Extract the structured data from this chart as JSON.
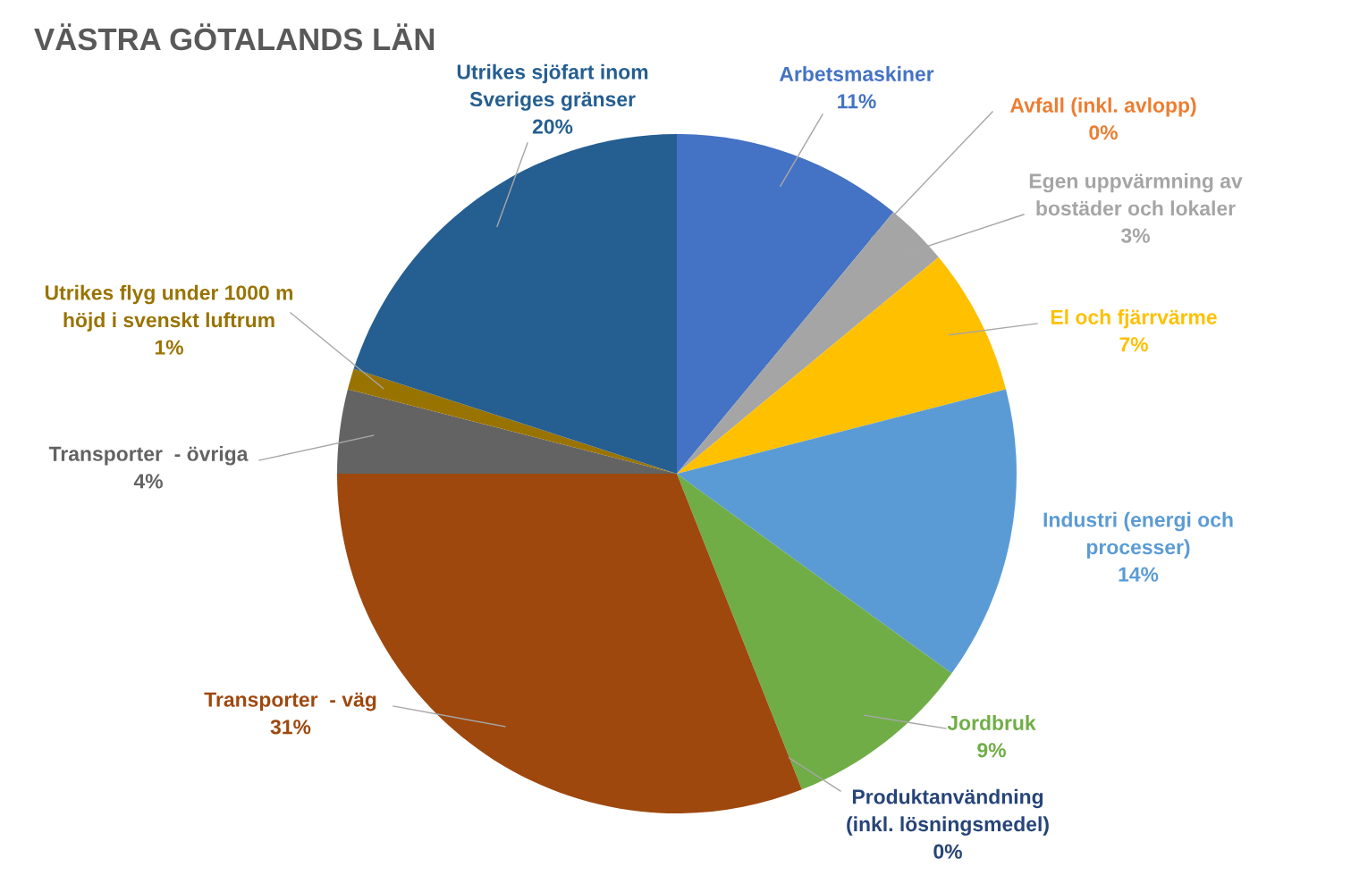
{
  "chart_data": {
    "type": "pie",
    "title": "VÄSTRA GÖTALANDS LÄN",
    "categories": [
      "Arbetsmaskiner",
      "Avfall (inkl. avlopp)",
      "Egen uppvärmning av\nbostäder och lokaler",
      "El och fjärrvärme",
      "Industri (energi och\nprocesser)",
      "Jordbruk",
      "Produktanvändning\n(inkl. lösningsmedel)",
      "Transporter  - väg",
      "Transporter  - övriga",
      "Utrikes flyg under 1000 m\nhöjd i svenskt luftrum",
      "Utrikes sjöfart inom\nSveriges gränser"
    ],
    "values": [
      11,
      0,
      3,
      7,
      14,
      9,
      0,
      31,
      4,
      1,
      20
    ],
    "value_labels": [
      "11%",
      "0%",
      "3%",
      "7%",
      "14%",
      "9%",
      "0%",
      "31%",
      "4%",
      "1%",
      "20%"
    ],
    "colors": [
      "#4472c4",
      "#ed7d31",
      "#a5a5a5",
      "#ffc000",
      "#5b9bd5",
      "#70ad47",
      "#264478",
      "#9e480e",
      "#636363",
      "#997300",
      "#255e91"
    ],
    "legend": false
  }
}
